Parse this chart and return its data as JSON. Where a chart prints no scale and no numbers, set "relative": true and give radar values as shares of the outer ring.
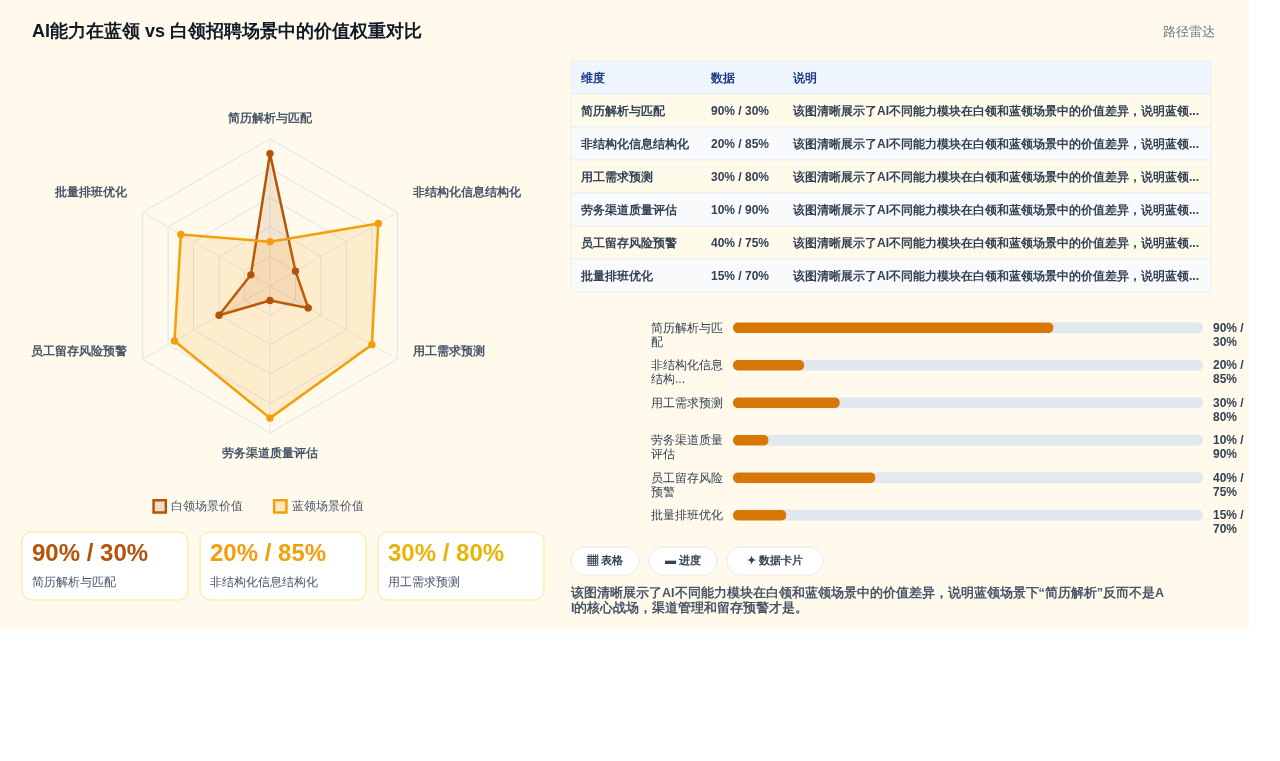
{
  "chart_data": [
    {
      "type": "radar",
      "title": "AI能力在蓝领 vs 白领招聘场景中的价值权重对比",
      "categories": [
        "简历解析与匹配",
        "非结构化信息结构化",
        "用工需求预测",
        "劳务渠道质量评估",
        "员工留存风险预警",
        "批量排班优化"
      ],
      "relative": true,
      "grid": true,
      "legend": "bottom",
      "marker": "circle",
      "series": [
        {
          "name": "白领场景价值",
          "color": "#b45309",
          "values": [
            0.9,
            0.2,
            0.3,
            0.1,
            0.4,
            0.15
          ]
        },
        {
          "name": "蓝领场景价值",
          "color": "#f59e0b",
          "values": [
            0.3,
            0.85,
            0.8,
            0.9,
            0.75,
            0.7
          ]
        }
      ]
    },
    {
      "type": "other",
      "title": "路径雷达",
      "annotations": [
        "维度",
        "数据",
        "说明",
        "简历解析与匹配",
        "90% / 30%",
        "该图清晰展示了AI不同能力模块在白领和蓝领场景中的价值差异，说明蓝领...",
        "非结构化信息结构化",
        "20% / 85%",
        "该图清晰展示了AI不同能力模块在白领和蓝领场景中的价值差异，说明蓝领...",
        "用工需求预测",
        "30% / 80%",
        "该图清晰展示了AI不同能力模块在白领和蓝领场景中的价值差异，说明蓝领...",
        "劳务渠道质量评估",
        "10% / 90%",
        "该图清晰展示了AI不同能力模块在白领和蓝领场景中的价值差异，说明蓝领...",
        "员工留存风险预警",
        "40% / 75%",
        "该图清晰展示了AI不同能力模块在白领和蓝领场景中的价值差异，说明蓝领...",
        "批量排班优化",
        "15% / 70%",
        "该图清晰展示了AI不同能力模块在白领和蓝领场景中的价值差异，说明蓝领..."
      ]
    },
    {
      "type": "bar",
      "orientation": "horizontal",
      "categories": [
        "简历解析与匹配",
        "非结构化信息结构...",
        "用工需求预测",
        "劳务渠道质量评估",
        "员工留存风险预警",
        "批量排班优化"
      ],
      "values": [
        90,
        20,
        30,
        10,
        40,
        15
      ],
      "value_labels": [
        "90% / 30%",
        "20% / 85%",
        "30% / 80%",
        "10% / 90%",
        "40% / 75%",
        "15% / 70%"
      ],
      "xlim": [
        0,
        132
      ],
      "color": "#d97706"
    },
    {
      "type": "other",
      "annotations": [
        "90% / 30%",
        "简历解析与匹配",
        "20% / 85%",
        "非结构化信息结构化",
        "30% / 80%",
        "用工需求预测"
      ],
      "colors": [
        "#b45309",
        "#f59e0b",
        "#eab308"
      ]
    },
    {
      "type": "other",
      "annotations": [
        "▦ 表格",
        "▬ 进度",
        "✦ 数据卡片",
        "该图清晰展示了AI不同能力模块在白领和蓝领场景中的价值差异，说明蓝领场景下“简历解析”反而不是AI的核心战场，渠道管理和留存预警才是。"
      ]
    }
  ]
}
